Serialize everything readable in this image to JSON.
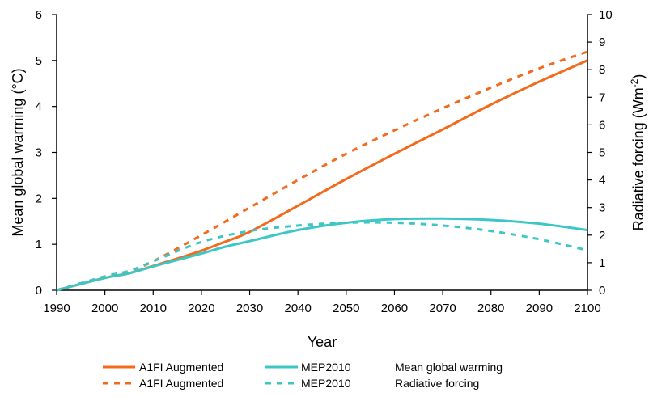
{
  "chart_data": {
    "type": "line",
    "title": "",
    "xlabel": "Year",
    "ylabel": "Mean global warming (°C)",
    "y2label": "Radiative forcing (Wm-2)",
    "y2label_base": "Radiative forcing (Wm",
    "y2label_sup": "-2",
    "y2label_end": ")",
    "xlim": [
      1990,
      2100
    ],
    "ylim": [
      0,
      6
    ],
    "y2lim": [
      0,
      10
    ],
    "xticks": [
      "1990",
      "2000",
      "2010",
      "2020",
      "2030",
      "2040",
      "2050",
      "2060",
      "2070",
      "2080",
      "2090",
      "2100"
    ],
    "yticks": [
      "0",
      "1",
      "2",
      "3",
      "4",
      "5",
      "6"
    ],
    "y2ticks": [
      "0",
      "1",
      "2",
      "3",
      "4",
      "5",
      "6",
      "7",
      "8",
      "9",
      "10"
    ],
    "grid": false,
    "legend_position": "bottom",
    "colors": {
      "a1fi": "#f26a1b",
      "mep": "#3cc6c6"
    },
    "series": [
      {
        "name": "A1FI Augmented",
        "axis": "left",
        "style": "solid",
        "color": "#f26a1b",
        "x": [
          1990,
          2000,
          2005,
          2010,
          2015,
          2020,
          2025,
          2030,
          2040,
          2050,
          2060,
          2070,
          2080,
          2090,
          2100
        ],
        "y": [
          0,
          0.27,
          0.37,
          0.53,
          0.69,
          0.86,
          1.06,
          1.27,
          1.84,
          2.42,
          2.97,
          3.5,
          4.04,
          4.54,
          5.0
        ]
      },
      {
        "name": "MEP2010",
        "axis": "left",
        "style": "solid",
        "color": "#3cc6c6",
        "x": [
          1990,
          2000,
          2005,
          2010,
          2015,
          2020,
          2025,
          2030,
          2040,
          2050,
          2060,
          2070,
          2080,
          2090,
          2100
        ],
        "y": [
          0,
          0.27,
          0.37,
          0.52,
          0.66,
          0.8,
          0.95,
          1.07,
          1.31,
          1.47,
          1.55,
          1.56,
          1.53,
          1.45,
          1.31
        ]
      },
      {
        "name": "A1FI Augmented",
        "axis": "right",
        "style": "dashed",
        "color": "#f26a1b",
        "x": [
          1990,
          2000,
          2005,
          2010,
          2020,
          2030,
          2040,
          2050,
          2060,
          2070,
          2080,
          2090,
          2100
        ],
        "y": [
          0,
          0.5,
          0.7,
          1.05,
          2.0,
          3.0,
          4.0,
          4.95,
          5.8,
          6.6,
          7.35,
          8.05,
          8.65
        ]
      },
      {
        "name": "MEP2010",
        "axis": "right",
        "style": "dashed",
        "color": "#3cc6c6",
        "x": [
          1990,
          2000,
          2005,
          2010,
          2020,
          2030,
          2040,
          2050,
          2060,
          2070,
          2080,
          2090,
          2100
        ],
        "y": [
          0,
          0.5,
          0.7,
          1.05,
          1.75,
          2.15,
          2.35,
          2.45,
          2.45,
          2.35,
          2.15,
          1.85,
          1.45
        ]
      }
    ],
    "legend": {
      "rows": [
        {
          "left_label": "A1FI Augmented",
          "right_label": "MEP2010",
          "style": "solid",
          "description": "Mean global warming"
        },
        {
          "left_label": "A1FI Augmented",
          "right_label": "MEP2010",
          "style": "dashed",
          "description": "Radiative forcing"
        }
      ]
    }
  }
}
